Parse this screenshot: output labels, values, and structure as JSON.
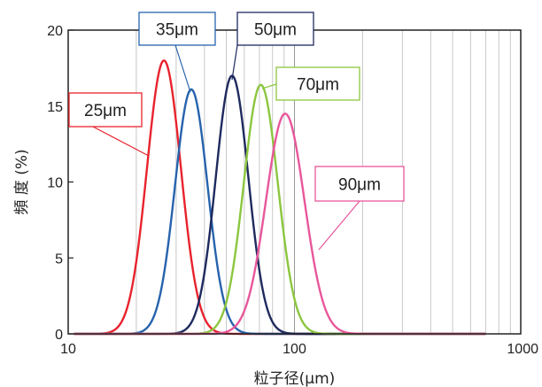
{
  "chart_data": {
    "type": "line",
    "xscale": "log",
    "xlim": [
      10,
      1000
    ],
    "ylim": [
      0,
      20
    ],
    "xticks": [
      "10",
      "100",
      "1000"
    ],
    "yticks": [
      "0",
      "5",
      "10",
      "15",
      "20"
    ],
    "xlabel": "粒子径(μm)",
    "ylabel": "頻 度 (%)",
    "grid": "vertical minor",
    "series": [
      {
        "name": "25μm",
        "color": "#e8232e",
        "peak_x": 26.5,
        "peak_y": 18.0,
        "width": 0.075
      },
      {
        "name": "35μm",
        "color": "#2663ad",
        "peak_x": 35,
        "peak_y": 16.1,
        "width": 0.072
      },
      {
        "name": "50μm",
        "color": "#1e2a5e",
        "peak_x": 53,
        "peak_y": 17.0,
        "width": 0.072
      },
      {
        "name": "70μm",
        "color": "#8cc63f",
        "peak_x": 71,
        "peak_y": 16.4,
        "width": 0.075
      },
      {
        "name": "90μm",
        "color": "#e8579a",
        "peak_x": 91,
        "peak_y": 14.5,
        "width": 0.085
      }
    ]
  }
}
